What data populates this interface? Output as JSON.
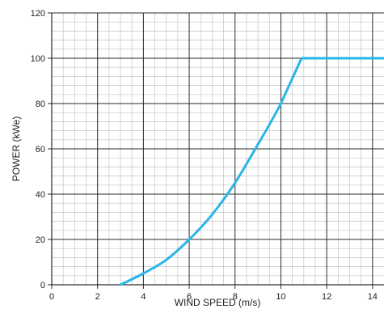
{
  "chart_data": {
    "type": "line",
    "title": "",
    "xlabel": "WIND SPEED (m/s)",
    "ylabel": "POWER (kWe)",
    "xlim": [
      0,
      14.5
    ],
    "ylim": [
      0,
      120
    ],
    "xticks": [
      0,
      2,
      4,
      6,
      8,
      10,
      12,
      14
    ],
    "yticks": [
      0,
      20,
      40,
      60,
      80,
      100,
      120
    ],
    "xtick_labels": [
      "0",
      "2",
      "4",
      "6",
      "8",
      "10",
      "12",
      "14"
    ],
    "ytick_labels": [
      "0",
      "20",
      "40",
      "60",
      "80",
      "100",
      "120"
    ],
    "grid": true,
    "legend": "none",
    "line_color": "#2BB5E8",
    "series": [
      {
        "x": [
          3,
          4,
          5,
          6,
          7,
          8,
          9,
          10,
          10.9,
          14.5
        ],
        "values": [
          0,
          5,
          11,
          20,
          31,
          45,
          62,
          80,
          100,
          100
        ]
      }
    ]
  }
}
